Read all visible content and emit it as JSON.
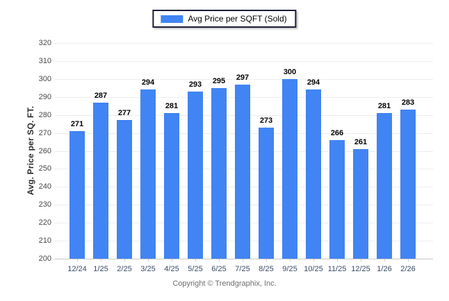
{
  "legend": {
    "swatch_color": "#4184F3"
  },
  "footer": {
    "copyright": "Copyright © Trendgraphix, Inc."
  },
  "chart_data": {
    "type": "bar",
    "title": "",
    "categories": [
      "12/24",
      "1/25",
      "2/25",
      "3/25",
      "4/25",
      "5/25",
      "6/25",
      "7/25",
      "8/25",
      "9/25",
      "10/25",
      "11/25",
      "12/25",
      "1/26",
      "2/26"
    ],
    "series": [
      {
        "name": "Avg Price per SQFT (Sold)",
        "values": [
          271,
          287,
          277,
          294,
          281,
          293,
          295,
          297,
          273,
          300,
          294,
          266,
          261,
          281,
          283
        ]
      }
    ],
    "xlabel": "",
    "ylabel": "Avg. Price per SQ. FT.",
    "ylim": [
      200,
      320
    ],
    "ytick_step": 10,
    "grid": true,
    "legend_position": "top-center",
    "bar_color": "#4184F3",
    "data_labels": true
  }
}
